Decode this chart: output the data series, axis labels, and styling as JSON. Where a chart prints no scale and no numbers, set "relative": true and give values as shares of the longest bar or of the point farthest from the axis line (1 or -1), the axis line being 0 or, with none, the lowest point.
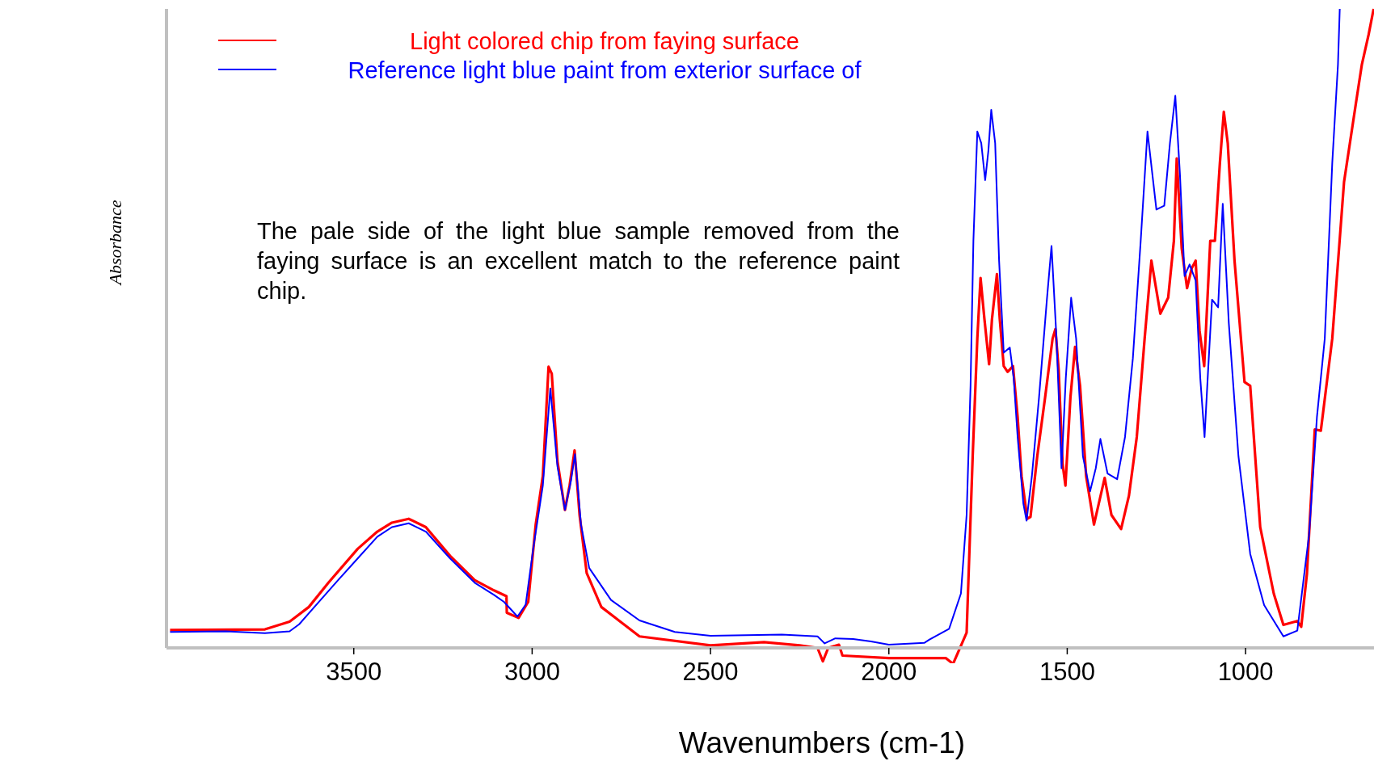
{
  "chart_data": {
    "type": "line",
    "xlabel": "Wavenumbers (cm-1)",
    "ylabel": "Absorbance",
    "relative": true,
    "xlim": [
      4025,
      640
    ],
    "xticks": [
      3500,
      3000,
      2500,
      2000,
      1500,
      1000
    ],
    "grid": false,
    "legend": "top left",
    "marker": "none",
    "line_style": "solid",
    "annotations": [
      "The pale side of the light blue sample removed from the faying surface is an excellent match to the reference paint chip."
    ],
    "series": [
      {
        "name": "Light colored chip from faying surface",
        "color": "#ff0000",
        "x": [
          4015,
          3749,
          3680,
          3626,
          3571,
          3489,
          3434,
          3393,
          3346,
          3298,
          3230,
          3161,
          3107,
          3072,
          3071,
          3038,
          3011,
          2990,
          2970,
          2954,
          2945,
          2929,
          2908,
          2895,
          2881,
          2867,
          2847,
          2806,
          2699,
          2500,
          2350,
          2250,
          2200,
          2185,
          2170,
          2140,
          2130,
          2000,
          1900,
          1840,
          1820,
          1782,
          1765,
          1752,
          1743,
          1732,
          1719,
          1711,
          1697,
          1689,
          1678,
          1667,
          1652,
          1639,
          1628,
          1612,
          1603,
          1584,
          1562,
          1541,
          1533,
          1524,
          1513,
          1505,
          1491,
          1478,
          1464,
          1447,
          1425,
          1409,
          1395,
          1376,
          1349,
          1327,
          1305,
          1283,
          1264,
          1239,
          1217,
          1201,
          1193,
          1179,
          1164,
          1151,
          1140,
          1129,
          1116,
          1099,
          1086,
          1072,
          1061,
          1050,
          1031,
          1003,
          987,
          959,
          921,
          894,
          855,
          844,
          828,
          806,
          789,
          757,
          724,
          691,
          674,
          655,
          641
        ],
        "values": [
          0.028,
          0.029,
          0.041,
          0.064,
          0.102,
          0.155,
          0.182,
          0.196,
          0.202,
          0.189,
          0.144,
          0.106,
          0.09,
          0.081,
          0.055,
          0.047,
          0.072,
          0.193,
          0.269,
          0.44,
          0.429,
          0.292,
          0.216,
          0.254,
          0.309,
          0.208,
          0.117,
          0.064,
          0.018,
          0.004,
          0.009,
          0.004,
          0.0,
          -0.021,
          0.0,
          0.005,
          -0.012,
          -0.016,
          -0.016,
          -0.016,
          -0.025,
          0.024,
          0.3,
          0.484,
          0.579,
          0.514,
          0.444,
          0.514,
          0.585,
          0.514,
          0.441,
          0.432,
          0.441,
          0.361,
          0.269,
          0.202,
          0.205,
          0.3,
          0.392,
          0.484,
          0.499,
          0.435,
          0.288,
          0.254,
          0.392,
          0.471,
          0.41,
          0.269,
          0.193,
          0.232,
          0.266,
          0.208,
          0.186,
          0.238,
          0.33,
          0.484,
          0.606,
          0.523,
          0.548,
          0.637,
          0.766,
          0.625,
          0.563,
          0.594,
          0.606,
          0.496,
          0.441,
          0.637,
          0.637,
          0.759,
          0.839,
          0.79,
          0.606,
          0.416,
          0.41,
          0.189,
          0.085,
          0.036,
          0.042,
          0.033,
          0.116,
          0.342,
          0.34,
          0.484,
          0.729,
          0.851,
          0.913,
          0.96,
          1.0
        ]
      },
      {
        "name": "Reference light blue paint from exterior surface of",
        "color": "#0000ff",
        "x": [
          4015,
          3858,
          3749,
          3680,
          3653,
          3598,
          3544,
          3489,
          3434,
          3393,
          3346,
          3298,
          3230,
          3161,
          3107,
          3079,
          3041,
          3018,
          2997,
          2970,
          2949,
          2929,
          2908,
          2891,
          2880,
          2863,
          2840,
          2779,
          2699,
          2600,
          2500,
          2300,
          2200,
          2180,
          2150,
          2100,
          2050,
          2000,
          1900,
          1886,
          1831,
          1798,
          1782,
          1771,
          1763,
          1752,
          1741,
          1730,
          1721,
          1713,
          1702,
          1691,
          1678,
          1661,
          1650,
          1639,
          1623,
          1614,
          1599,
          1579,
          1557,
          1544,
          1530,
          1516,
          1504,
          1489,
          1475,
          1456,
          1436,
          1420,
          1407,
          1387,
          1360,
          1338,
          1316,
          1294,
          1275,
          1250,
          1228,
          1212,
          1197,
          1184,
          1171,
          1157,
          1140,
          1127,
          1115,
          1105,
          1094,
          1077,
          1064,
          1047,
          1020,
          987,
          948,
          894,
          855,
          822,
          800,
          778,
          757,
          741,
          736
        ],
        "values": [
          0.025,
          0.026,
          0.023,
          0.026,
          0.037,
          0.072,
          0.106,
          0.14,
          0.174,
          0.189,
          0.195,
          0.182,
          0.14,
          0.102,
          0.083,
          0.072,
          0.049,
          0.068,
          0.155,
          0.254,
          0.406,
          0.284,
          0.216,
          0.262,
          0.303,
          0.193,
          0.125,
          0.075,
          0.043,
          0.025,
          0.019,
          0.021,
          0.018,
          0.007,
          0.015,
          0.014,
          0.01,
          0.005,
          0.008,
          0.013,
          0.03,
          0.085,
          0.208,
          0.41,
          0.637,
          0.808,
          0.79,
          0.732,
          0.778,
          0.842,
          0.79,
          0.606,
          0.462,
          0.47,
          0.422,
          0.33,
          0.226,
          0.199,
          0.269,
          0.392,
          0.545,
          0.629,
          0.484,
          0.281,
          0.422,
          0.548,
          0.484,
          0.3,
          0.245,
          0.281,
          0.327,
          0.273,
          0.264,
          0.33,
          0.453,
          0.637,
          0.808,
          0.686,
          0.692,
          0.79,
          0.864,
          0.741,
          0.582,
          0.6,
          0.575,
          0.422,
          0.33,
          0.435,
          0.545,
          0.533,
          0.695,
          0.508,
          0.3,
          0.147,
          0.067,
          0.018,
          0.027,
          0.177,
          0.361,
          0.484,
          0.759,
          0.913,
          1.0
        ]
      }
    ]
  }
}
